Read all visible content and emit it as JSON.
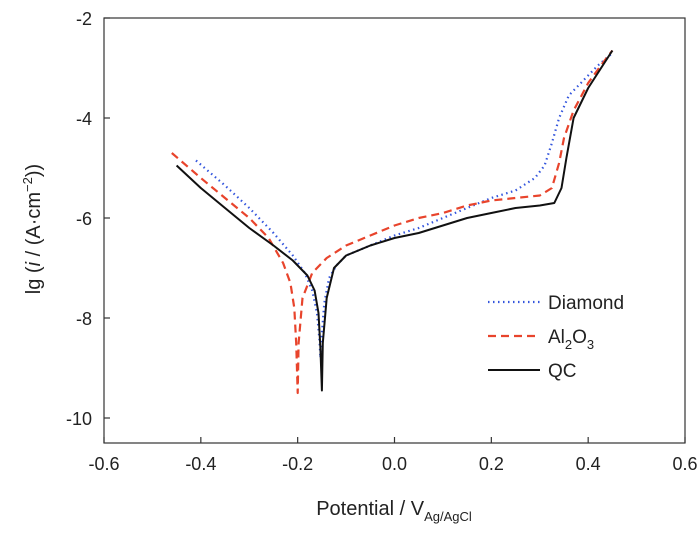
{
  "chart_data": {
    "type": "line",
    "title": "",
    "xlabel": "Potential / V",
    "xlabel_sub": "Ag/AgCl",
    "ylabel_parts": [
      "lg (",
      "i",
      " / (A·cm",
      "−2",
      "))"
    ],
    "xlim": [
      -0.6,
      0.6
    ],
    "ylim": [
      -10.5,
      -2
    ],
    "x_ticks": [
      -0.6,
      -0.4,
      -0.2,
      0.0,
      0.2,
      0.4,
      0.6
    ],
    "x_tick_labels": [
      "-0.6",
      "-0.4",
      "-0.2",
      "0.0",
      "0.2",
      "0.4",
      "0.6"
    ],
    "y_ticks": [
      -2,
      -4,
      -6,
      -8,
      -10
    ],
    "y_tick_labels": [
      "-2",
      "-4",
      "-6",
      "-8",
      "-10"
    ],
    "grid": false,
    "legend_position": "bottom-right",
    "series": [
      {
        "name": "Diamond",
        "name_parts": [
          {
            "t": "Diamond"
          }
        ],
        "color": "#3355dd",
        "dash": "dotted",
        "points": [
          [
            -0.41,
            -4.85
          ],
          [
            -0.35,
            -5.35
          ],
          [
            -0.3,
            -5.8
          ],
          [
            -0.25,
            -6.3
          ],
          [
            -0.21,
            -6.75
          ],
          [
            -0.185,
            -7.1
          ],
          [
            -0.17,
            -7.45
          ],
          [
            -0.16,
            -7.9
          ],
          [
            -0.155,
            -8.45
          ],
          [
            -0.153,
            -8.8
          ],
          [
            -0.15,
            -8.3
          ],
          [
            -0.145,
            -7.7
          ],
          [
            -0.135,
            -7.2
          ],
          [
            -0.12,
            -6.95
          ],
          [
            -0.1,
            -6.75
          ],
          [
            -0.05,
            -6.55
          ],
          [
            0.0,
            -6.35
          ],
          [
            0.05,
            -6.2
          ],
          [
            0.1,
            -6.0
          ],
          [
            0.15,
            -5.8
          ],
          [
            0.2,
            -5.6
          ],
          [
            0.25,
            -5.45
          ],
          [
            0.29,
            -5.2
          ],
          [
            0.31,
            -4.95
          ],
          [
            0.325,
            -4.5
          ],
          [
            0.34,
            -4.0
          ],
          [
            0.36,
            -3.55
          ],
          [
            0.39,
            -3.25
          ],
          [
            0.42,
            -2.95
          ],
          [
            0.45,
            -2.7
          ]
        ]
      },
      {
        "name": "Al2O3",
        "name_parts": [
          {
            "t": "Al"
          },
          {
            "t": "2",
            "sub": true
          },
          {
            "t": "O"
          },
          {
            "t": "3",
            "sub": true
          }
        ],
        "color": "#e8442c",
        "dash": "dashed",
        "points": [
          [
            -0.46,
            -4.7
          ],
          [
            -0.4,
            -5.2
          ],
          [
            -0.35,
            -5.6
          ],
          [
            -0.3,
            -6.0
          ],
          [
            -0.26,
            -6.4
          ],
          [
            -0.23,
            -6.9
          ],
          [
            -0.215,
            -7.3
          ],
          [
            -0.207,
            -7.8
          ],
          [
            -0.203,
            -8.5
          ],
          [
            -0.2,
            -9.5
          ],
          [
            -0.198,
            -8.5
          ],
          [
            -0.19,
            -7.6
          ],
          [
            -0.17,
            -7.1
          ],
          [
            -0.14,
            -6.8
          ],
          [
            -0.1,
            -6.55
          ],
          [
            -0.05,
            -6.35
          ],
          [
            0.0,
            -6.15
          ],
          [
            0.05,
            -6.0
          ],
          [
            0.1,
            -5.9
          ],
          [
            0.15,
            -5.75
          ],
          [
            0.2,
            -5.65
          ],
          [
            0.25,
            -5.6
          ],
          [
            0.3,
            -5.55
          ],
          [
            0.325,
            -5.4
          ],
          [
            0.34,
            -4.9
          ],
          [
            0.35,
            -4.4
          ],
          [
            0.37,
            -3.85
          ],
          [
            0.4,
            -3.3
          ],
          [
            0.43,
            -2.9
          ],
          [
            0.45,
            -2.65
          ]
        ]
      },
      {
        "name": "QC",
        "name_parts": [
          {
            "t": "QC"
          }
        ],
        "color": "#111111",
        "dash": "solid",
        "points": [
          [
            -0.45,
            -4.95
          ],
          [
            -0.4,
            -5.4
          ],
          [
            -0.35,
            -5.8
          ],
          [
            -0.3,
            -6.2
          ],
          [
            -0.25,
            -6.55
          ],
          [
            -0.21,
            -6.85
          ],
          [
            -0.18,
            -7.15
          ],
          [
            -0.165,
            -7.45
          ],
          [
            -0.157,
            -7.9
          ],
          [
            -0.153,
            -8.6
          ],
          [
            -0.15,
            -9.45
          ],
          [
            -0.148,
            -8.5
          ],
          [
            -0.14,
            -7.6
          ],
          [
            -0.125,
            -7.0
          ],
          [
            -0.1,
            -6.75
          ],
          [
            -0.05,
            -6.55
          ],
          [
            0.0,
            -6.4
          ],
          [
            0.05,
            -6.3
          ],
          [
            0.1,
            -6.15
          ],
          [
            0.15,
            -6.0
          ],
          [
            0.2,
            -5.9
          ],
          [
            0.25,
            -5.8
          ],
          [
            0.3,
            -5.75
          ],
          [
            0.33,
            -5.7
          ],
          [
            0.345,
            -5.4
          ],
          [
            0.355,
            -4.8
          ],
          [
            0.37,
            -4.0
          ],
          [
            0.4,
            -3.4
          ],
          [
            0.43,
            -2.95
          ],
          [
            0.45,
            -2.65
          ]
        ]
      }
    ]
  }
}
